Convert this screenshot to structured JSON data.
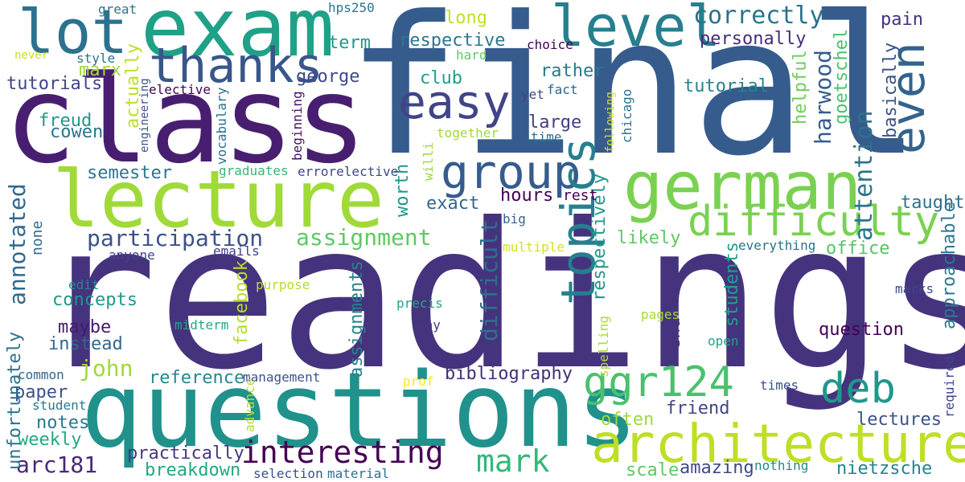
{
  "words": [
    {
      "text": "readings",
      "color": "#46337e"
    },
    {
      "text": "final",
      "color": "#365c8d"
    },
    {
      "text": "class",
      "color": "#481f70"
    },
    {
      "text": "questions",
      "color": "#21918c"
    },
    {
      "text": "exam",
      "color": "#1fa187"
    },
    {
      "text": "lecture",
      "color": "#a0da39"
    },
    {
      "text": "german",
      "color": "#7ad151"
    },
    {
      "text": "architecture",
      "color": "#bddf26"
    },
    {
      "text": "lot",
      "color": "#2c728e"
    },
    {
      "text": "level",
      "color": "#277f8e"
    },
    {
      "text": "thanks",
      "color": "#39568c"
    },
    {
      "text": "easy",
      "color": "#414487"
    },
    {
      "text": "group",
      "color": "#365c8d"
    },
    {
      "text": "topics",
      "color": "#277f8e"
    },
    {
      "text": "even",
      "color": "#33638d"
    },
    {
      "text": "difficulty",
      "color": "#7ad151"
    },
    {
      "text": "ggr124",
      "color": "#4ac16d"
    },
    {
      "text": "deb",
      "color": "#1f988b"
    },
    {
      "text": "correctly",
      "color": "#2c728e"
    },
    {
      "text": "attention",
      "color": "#2c728e"
    },
    {
      "text": "interesting",
      "color": "#440154"
    },
    {
      "text": "mark",
      "color": "#35b779"
    },
    {
      "text": "participation",
      "color": "#3b528b"
    },
    {
      "text": "assignment",
      "color": "#5ec962"
    },
    {
      "text": "difficult",
      "color": "#2c728e"
    },
    {
      "text": "annotated",
      "color": "#31688e"
    },
    {
      "text": "arc181",
      "color": "#482878"
    },
    {
      "text": "john",
      "color": "#a0da39"
    },
    {
      "text": "harwood",
      "color": "#365c8d"
    },
    {
      "text": "respectively",
      "color": "#1f988b"
    },
    {
      "text": "hours",
      "color": "#440154"
    },
    {
      "text": "concepts",
      "color": "#1f988b"
    },
    {
      "text": "tutorials",
      "color": "#414487"
    },
    {
      "text": "marx",
      "color": "#9fda3a"
    },
    {
      "text": "george",
      "color": "#3e4989"
    },
    {
      "text": "respective",
      "color": "#2a788e"
    },
    {
      "text": "personally",
      "color": "#472d7b"
    },
    {
      "text": "cowen",
      "color": "#2c728e"
    },
    {
      "text": "freud",
      "color": "#1f988b"
    },
    {
      "text": "large",
      "color": "#433e85"
    },
    {
      "text": "rather",
      "color": "#2a788e"
    },
    {
      "text": "tutorial",
      "color": "#26828e"
    },
    {
      "text": "exact",
      "color": "#31688e"
    },
    {
      "text": "bibliography",
      "color": "#472d7b"
    },
    {
      "text": "weekly",
      "color": "#22a884"
    },
    {
      "text": "notes",
      "color": "#2a788e"
    },
    {
      "text": "paper",
      "color": "#3b528b"
    },
    {
      "text": "instead",
      "color": "#31688e"
    },
    {
      "text": "maybe",
      "color": "#481a6c"
    },
    {
      "text": "question",
      "color": "#440154"
    },
    {
      "text": "lectures",
      "color": "#3b528b"
    },
    {
      "text": "friend",
      "color": "#404688"
    },
    {
      "text": "amazing",
      "color": "#3e4989"
    },
    {
      "text": "nietzsche",
      "color": "#26828e"
    },
    {
      "text": "practically",
      "color": "#443983"
    },
    {
      "text": "breakdown",
      "color": "#22a884"
    },
    {
      "text": "scale",
      "color": "#5ec962"
    },
    {
      "text": "often",
      "color": "#9fda3a"
    },
    {
      "text": "reference",
      "color": "#23898e"
    },
    {
      "text": "assignments",
      "color": "#26828e"
    },
    {
      "text": "facebook",
      "color": "#b5de2b"
    },
    {
      "text": "likely",
      "color": "#5ec962"
    },
    {
      "text": "taught",
      "color": "#2c728e"
    },
    {
      "text": "students",
      "color": "#1fa187"
    },
    {
      "text": "office",
      "color": "#54c568"
    },
    {
      "text": "approachable",
      "color": "#2a788e"
    },
    {
      "text": "helpful",
      "color": "#6ece58"
    },
    {
      "text": "goetschel",
      "color": "#4ac16d"
    },
    {
      "text": "basically",
      "color": "#3b528b"
    },
    {
      "text": "pain",
      "color": "#46327e"
    },
    {
      "text": "club",
      "color": "#1f9f88"
    },
    {
      "text": "long",
      "color": "#c2df23"
    },
    {
      "text": "term",
      "color": "#1f988b"
    },
    {
      "text": "actually",
      "color": "#bddf26"
    },
    {
      "text": "end",
      "color": "#46337e"
    },
    {
      "text": "unfortunately",
      "color": "#2c728e"
    },
    {
      "text": "worth",
      "color": "#1f988b"
    },
    {
      "text": "semester",
      "color": "#2a788e"
    },
    {
      "text": "none",
      "color": "#31688e"
    },
    {
      "text": "rest",
      "color": "#440154"
    },
    {
      "text": "edit",
      "color": "#23898e"
    },
    {
      "text": "multiple",
      "color": "#d5e21a"
    },
    {
      "text": "precis",
      "color": "#22a884"
    },
    {
      "text": "big",
      "color": "#33638d"
    },
    {
      "text": "willi",
      "color": "#9bd93c"
    },
    {
      "text": "midterm",
      "color": "#22a884"
    },
    {
      "text": "everything",
      "color": "#2c728e"
    },
    {
      "text": "marks",
      "color": "#3e4989"
    },
    {
      "text": "purpose",
      "color": "#b5de2b"
    },
    {
      "text": "pages",
      "color": "#a5db36"
    },
    {
      "text": "open",
      "color": "#20a386"
    },
    {
      "text": "times",
      "color": "#3b528b"
    },
    {
      "text": "required",
      "color": "#404688"
    },
    {
      "text": "spelling",
      "color": "#a8db34"
    },
    {
      "text": "way",
      "color": "#443983"
    },
    {
      "text": "management",
      "color": "#3b528b"
    },
    {
      "text": "common",
      "color": "#31688e"
    },
    {
      "text": "student",
      "color": "#2a788e"
    },
    {
      "text": "prof",
      "color": "#fde725"
    },
    {
      "text": "advance",
      "color": "#b5de2b"
    },
    {
      "text": "material",
      "color": "#2c728e"
    },
    {
      "text": "selection",
      "color": "#3b528b"
    },
    {
      "text": "nothing",
      "color": "#25848e"
    },
    {
      "text": "anyone",
      "color": "#414487"
    },
    {
      "text": "emails",
      "color": "#433e85"
    },
    {
      "text": "graduates",
      "color": "#35b779"
    },
    {
      "text": "errorelective",
      "color": "#3e4989"
    },
    {
      "text": "beginning",
      "color": "#471164"
    },
    {
      "text": "vocabulary",
      "color": "#2c728e"
    },
    {
      "text": "engineering",
      "color": "#3b528b"
    },
    {
      "text": "elective",
      "color": "#440154"
    },
    {
      "text": "style",
      "color": "#2c728e"
    },
    {
      "text": "never",
      "color": "#c8e020"
    },
    {
      "text": "great",
      "color": "#2c728e"
    },
    {
      "text": "hps250",
      "color": "#2c728e"
    },
    {
      "text": "choice",
      "color": "#440154"
    },
    {
      "text": "hard",
      "color": "#5ec962"
    },
    {
      "text": "fact",
      "color": "#33638d"
    },
    {
      "text": "yet",
      "color": "#414487"
    },
    {
      "text": "together",
      "color": "#9fda3a"
    },
    {
      "text": "time",
      "color": "#2c728e"
    },
    {
      "text": "following",
      "color": "#d8e219"
    },
    {
      "text": "chicago",
      "color": "#2c728e"
    }
  ]
}
